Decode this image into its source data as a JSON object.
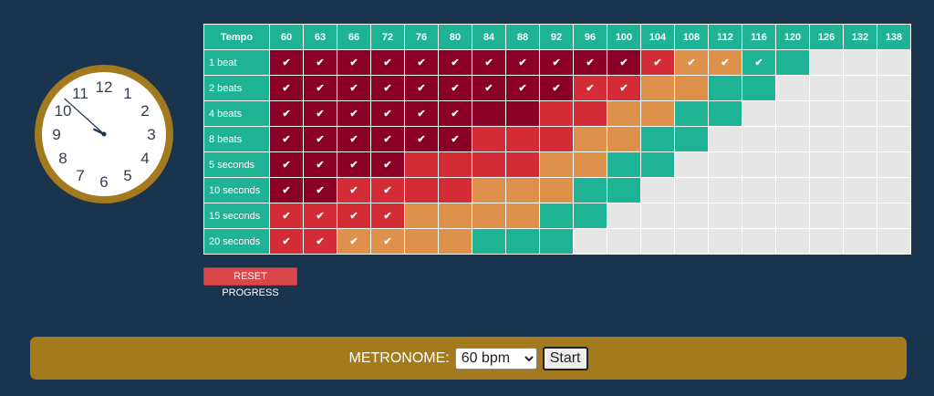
{
  "clock": {
    "numerals": [
      "12",
      "1",
      "2",
      "3",
      "4",
      "5",
      "6",
      "7",
      "8",
      "9",
      "10",
      "11"
    ],
    "time_shown": "9:52",
    "face_color": "#ffffff",
    "rim_color": "#a37a1d",
    "numeral_color": "#333f4d"
  },
  "grid": {
    "header_label": "Tempo",
    "tempos": [
      "60",
      "63",
      "66",
      "72",
      "76",
      "80",
      "84",
      "88",
      "92",
      "96",
      "100",
      "104",
      "108",
      "112",
      "116",
      "120",
      "126",
      "132",
      "138"
    ],
    "check_symbol": "✔",
    "rows": [
      {
        "label": "1 beat",
        "levels": [
          4,
          4,
          4,
          4,
          4,
          4,
          4,
          4,
          4,
          4,
          4,
          3,
          2,
          2,
          1,
          1,
          0,
          0,
          0
        ],
        "checked": [
          1,
          1,
          1,
          1,
          1,
          1,
          1,
          1,
          1,
          1,
          1,
          1,
          1,
          1,
          1,
          0,
          0,
          0,
          0
        ]
      },
      {
        "label": "2 beats",
        "levels": [
          4,
          4,
          4,
          4,
          4,
          4,
          4,
          4,
          4,
          3,
          3,
          2,
          2,
          1,
          1,
          0,
          0,
          0,
          0
        ],
        "checked": [
          1,
          1,
          1,
          1,
          1,
          1,
          1,
          1,
          1,
          1,
          1,
          0,
          0,
          0,
          0,
          0,
          0,
          0,
          0
        ]
      },
      {
        "label": "4 beats",
        "levels": [
          4,
          4,
          4,
          4,
          4,
          4,
          4,
          4,
          3,
          3,
          2,
          2,
          1,
          1,
          0,
          0,
          0,
          0,
          0
        ],
        "checked": [
          1,
          1,
          1,
          1,
          1,
          1,
          0,
          0,
          0,
          0,
          0,
          0,
          0,
          0,
          0,
          0,
          0,
          0,
          0
        ]
      },
      {
        "label": "8 beats",
        "levels": [
          4,
          4,
          4,
          4,
          4,
          4,
          3,
          3,
          3,
          2,
          2,
          1,
          1,
          0,
          0,
          0,
          0,
          0,
          0
        ],
        "checked": [
          1,
          1,
          1,
          1,
          1,
          1,
          0,
          0,
          0,
          0,
          0,
          0,
          0,
          0,
          0,
          0,
          0,
          0,
          0
        ]
      },
      {
        "label": "5 seconds",
        "levels": [
          4,
          4,
          4,
          4,
          3,
          3,
          3,
          3,
          2,
          2,
          1,
          1,
          0,
          0,
          0,
          0,
          0,
          0,
          0
        ],
        "checked": [
          1,
          1,
          1,
          1,
          0,
          0,
          0,
          0,
          0,
          0,
          0,
          0,
          0,
          0,
          0,
          0,
          0,
          0,
          0
        ]
      },
      {
        "label": "10 seconds",
        "levels": [
          4,
          4,
          3,
          3,
          3,
          3,
          2,
          2,
          2,
          1,
          1,
          0,
          0,
          0,
          0,
          0,
          0,
          0,
          0
        ],
        "checked": [
          1,
          1,
          1,
          1,
          0,
          0,
          0,
          0,
          0,
          0,
          0,
          0,
          0,
          0,
          0,
          0,
          0,
          0,
          0
        ]
      },
      {
        "label": "15 seconds",
        "levels": [
          3,
          3,
          3,
          3,
          2,
          2,
          2,
          2,
          1,
          1,
          0,
          0,
          0,
          0,
          0,
          0,
          0,
          0,
          0
        ],
        "checked": [
          1,
          1,
          1,
          1,
          0,
          0,
          0,
          0,
          0,
          0,
          0,
          0,
          0,
          0,
          0,
          0,
          0,
          0,
          0
        ]
      },
      {
        "label": "20 seconds",
        "levels": [
          3,
          3,
          2,
          2,
          2,
          2,
          1,
          1,
          1,
          0,
          0,
          0,
          0,
          0,
          0,
          0,
          0,
          0,
          0
        ],
        "checked": [
          1,
          1,
          1,
          1,
          0,
          0,
          0,
          0,
          0,
          0,
          0,
          0,
          0,
          0,
          0,
          0,
          0,
          0,
          0
        ]
      }
    ],
    "level_colors": {
      "4": "#8b0026",
      "3": "#d42c36",
      "2": "#de914a",
      "1": "#1db394",
      "0": "#e6e6e6"
    }
  },
  "reset_button": {
    "label": "RESET PROGRESS"
  },
  "metronome": {
    "label": "METRONOME:",
    "selected": "60 bpm",
    "start_label": "Start"
  }
}
